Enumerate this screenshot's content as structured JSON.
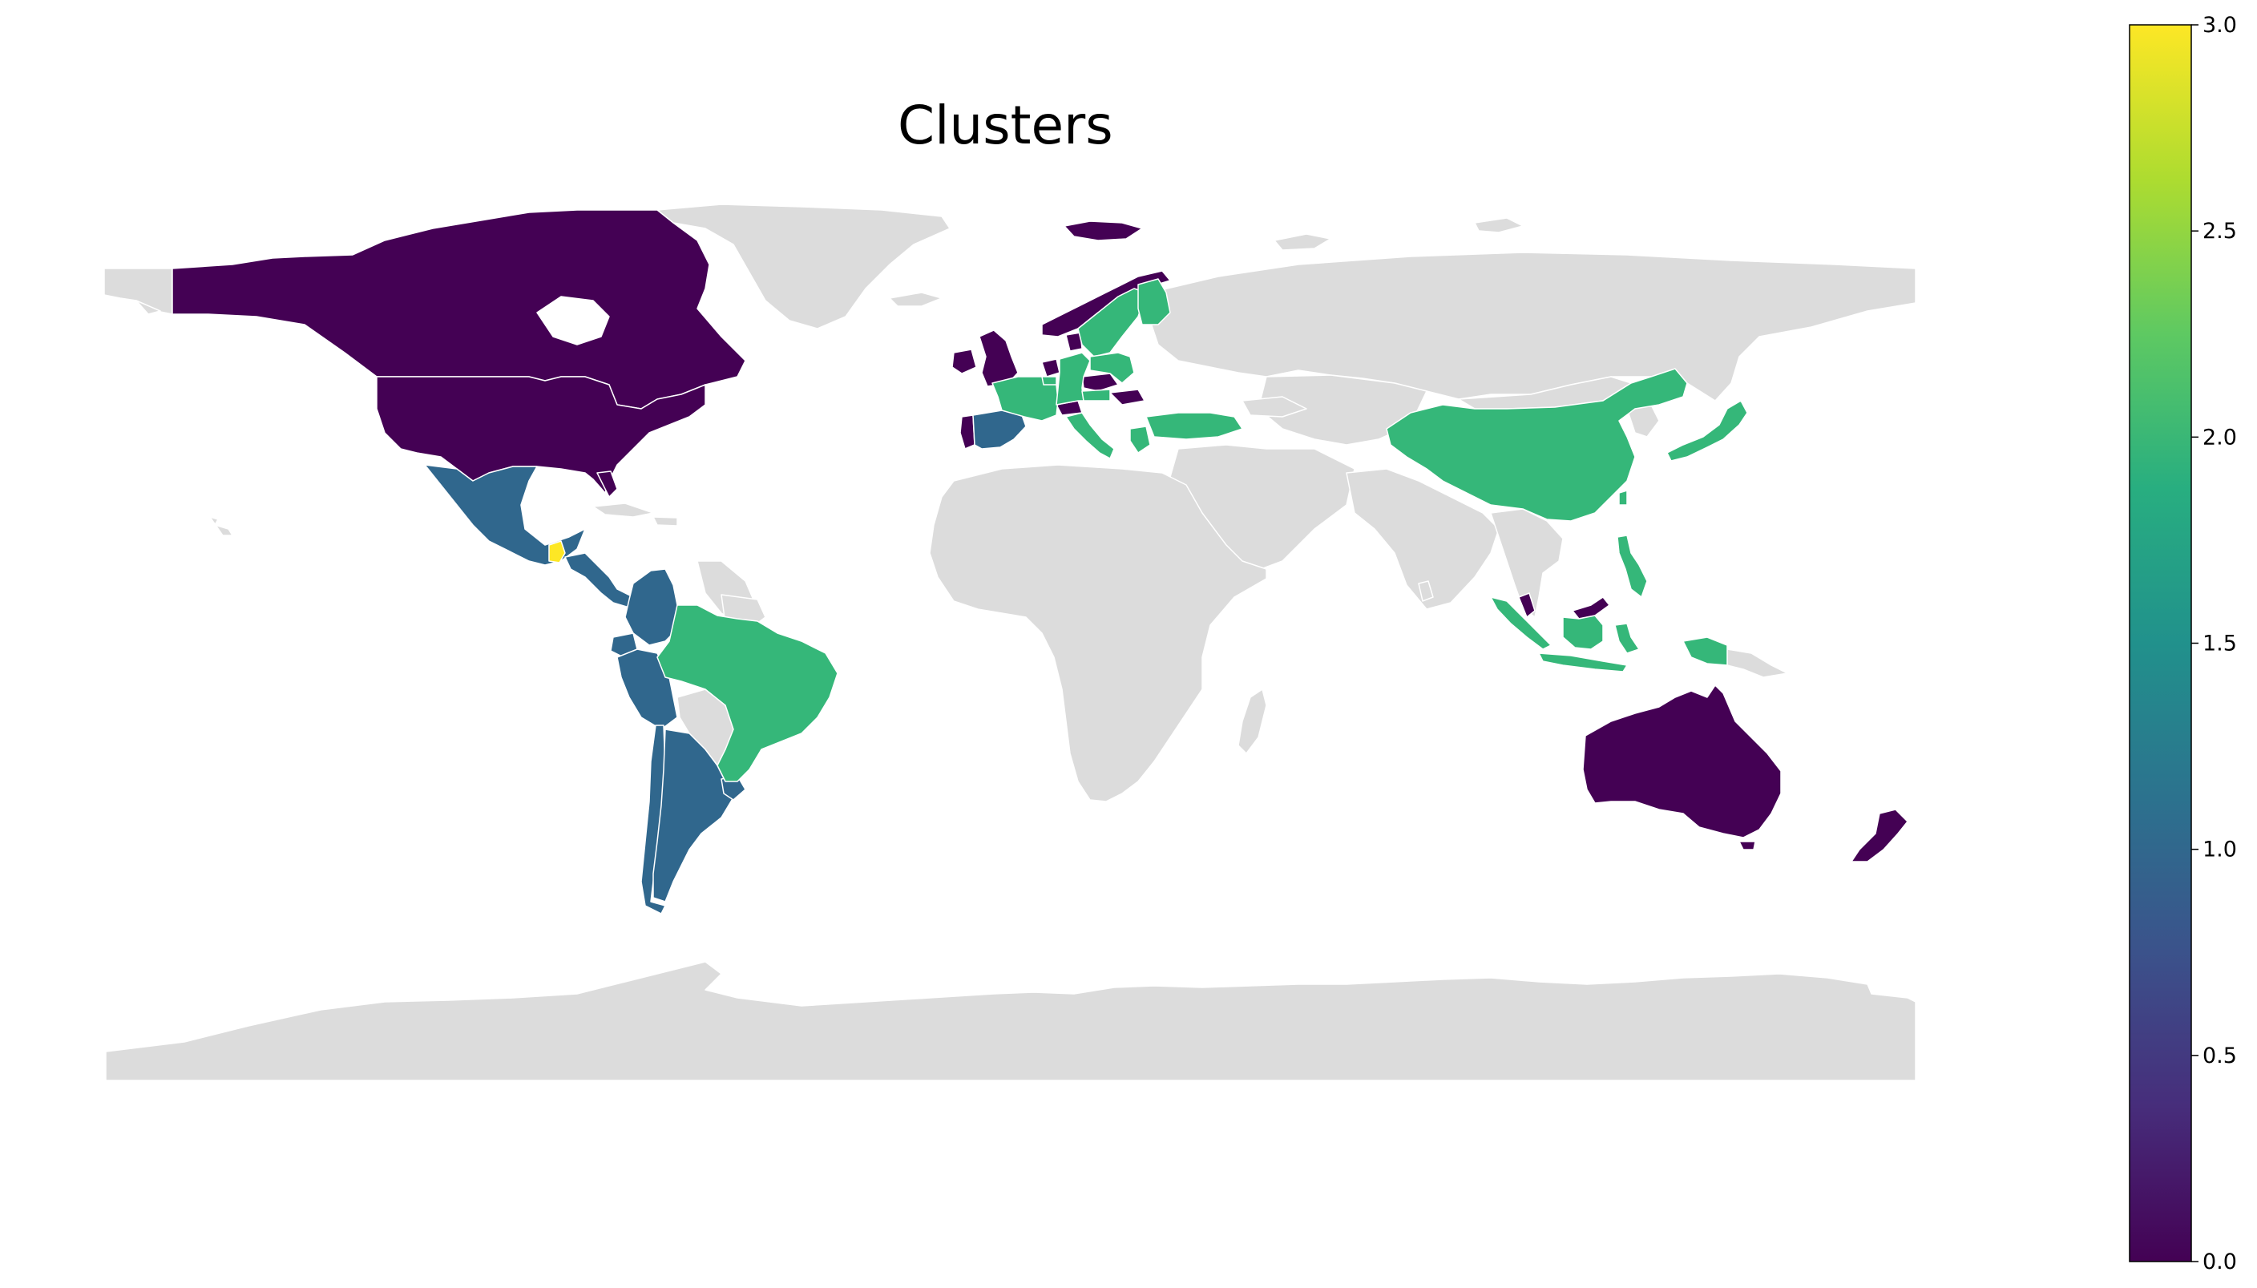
{
  "title": "Clusters",
  "chart_data": {
    "type": "choropleth",
    "title": "Clusters",
    "no_data_color": "#dcdcdc",
    "border_color": "#ffffff",
    "colormap": "viridis",
    "colorbar": {
      "min": 0.0,
      "max": 3.0,
      "ticks": [
        "0.0",
        "0.5",
        "1.0",
        "1.5",
        "2.0",
        "2.5",
        "3.0"
      ],
      "placement": "right"
    },
    "cluster_colors": {
      "0": "#440154",
      "1": "#30678d",
      "2": "#35b779",
      "3": "#fde725"
    },
    "regions": [
      {
        "name": "Canada",
        "cluster": 0
      },
      {
        "name": "United States",
        "cluster": 0
      },
      {
        "name": "Greenland",
        "cluster": null
      },
      {
        "name": "Mexico",
        "cluster": 1
      },
      {
        "name": "Guatemala",
        "cluster": 3
      },
      {
        "name": "Honduras",
        "cluster": 1
      },
      {
        "name": "Costa Rica",
        "cluster": 1
      },
      {
        "name": "Panama",
        "cluster": 1
      },
      {
        "name": "Colombia",
        "cluster": 1
      },
      {
        "name": "Ecuador",
        "cluster": 1
      },
      {
        "name": "Peru",
        "cluster": 1
      },
      {
        "name": "Chile",
        "cluster": 1
      },
      {
        "name": "Argentina",
        "cluster": 1
      },
      {
        "name": "Uruguay",
        "cluster": 1
      },
      {
        "name": "Brazil",
        "cluster": 2
      },
      {
        "name": "Venezuela",
        "cluster": null
      },
      {
        "name": "Bolivia",
        "cluster": null
      },
      {
        "name": "Paraguay",
        "cluster": null
      },
      {
        "name": "United Kingdom",
        "cluster": 0
      },
      {
        "name": "Ireland",
        "cluster": 0
      },
      {
        "name": "Norway",
        "cluster": 0
      },
      {
        "name": "Iceland",
        "cluster": 0
      },
      {
        "name": "Netherlands",
        "cluster": 0
      },
      {
        "name": "Switzerland",
        "cluster": 0
      },
      {
        "name": "Czechia",
        "cluster": 0
      },
      {
        "name": "Hungary",
        "cluster": 0
      },
      {
        "name": "Denmark",
        "cluster": 0
      },
      {
        "name": "Portugal",
        "cluster": 0
      },
      {
        "name": "Spain",
        "cluster": 1
      },
      {
        "name": "Sweden",
        "cluster": 2
      },
      {
        "name": "Finland",
        "cluster": 2
      },
      {
        "name": "Germany",
        "cluster": 2
      },
      {
        "name": "France",
        "cluster": 2
      },
      {
        "name": "Belgium",
        "cluster": 2
      },
      {
        "name": "Poland",
        "cluster": 2
      },
      {
        "name": "Austria",
        "cluster": 2
      },
      {
        "name": "Italy",
        "cluster": 2
      },
      {
        "name": "Greece",
        "cluster": 2
      },
      {
        "name": "Turkey",
        "cluster": 2
      },
      {
        "name": "China",
        "cluster": 2
      },
      {
        "name": "Japan",
        "cluster": 2
      },
      {
        "name": "Taiwan",
        "cluster": 2
      },
      {
        "name": "Philippines",
        "cluster": 2
      },
      {
        "name": "Indonesia",
        "cluster": 2
      },
      {
        "name": "Malaysia",
        "cluster": 0
      },
      {
        "name": "Singapore",
        "cluster": 0
      },
      {
        "name": "Australia",
        "cluster": 0
      },
      {
        "name": "New Zealand",
        "cluster": 0
      }
    ]
  }
}
